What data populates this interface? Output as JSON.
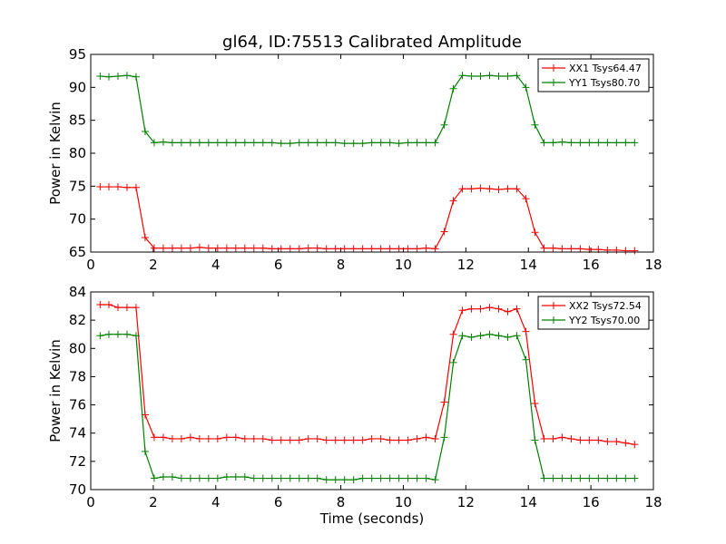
{
  "chart_data": [
    {
      "type": "line",
      "title": "gl64, ID:75513 Calibrated Amplitude",
      "xlabel": "",
      "ylabel": "Power in Kelvin",
      "xlim": [
        0,
        18
      ],
      "ylim": [
        65,
        95
      ],
      "xticks": [
        0,
        2,
        4,
        6,
        8,
        10,
        12,
        14,
        16,
        18
      ],
      "yticks": [
        65,
        70,
        75,
        80,
        85,
        90,
        95
      ],
      "grid": false,
      "legend": "top-right",
      "x": [
        0.3,
        0.58,
        0.87,
        1.16,
        1.45,
        1.74,
        2.03,
        2.32,
        2.61,
        2.9,
        3.19,
        3.48,
        3.77,
        4.06,
        4.35,
        4.64,
        4.93,
        5.22,
        5.51,
        5.8,
        6.09,
        6.38,
        6.67,
        6.96,
        7.25,
        7.54,
        7.83,
        8.12,
        8.41,
        8.7,
        8.99,
        9.28,
        9.57,
        9.86,
        10.15,
        10.44,
        10.73,
        11.02,
        11.31,
        11.6,
        11.89,
        12.18,
        12.47,
        12.76,
        13.05,
        13.34,
        13.63,
        13.92,
        14.21,
        14.5,
        14.79,
        15.08,
        15.37,
        15.66,
        15.95,
        16.24,
        16.53,
        16.82,
        17.11,
        17.4
      ],
      "series": [
        {
          "name": "XX1 Tsys64.47",
          "color": "#ff0000",
          "values": [
            74.9,
            74.9,
            74.9,
            74.8,
            74.8,
            67.2,
            65.6,
            65.6,
            65.6,
            65.6,
            65.6,
            65.7,
            65.6,
            65.6,
            65.6,
            65.6,
            65.6,
            65.6,
            65.6,
            65.5,
            65.5,
            65.5,
            65.5,
            65.6,
            65.6,
            65.5,
            65.5,
            65.5,
            65.5,
            65.5,
            65.5,
            65.5,
            65.5,
            65.5,
            65.5,
            65.5,
            65.6,
            65.5,
            68.1,
            72.8,
            74.6,
            74.6,
            74.7,
            74.6,
            74.5,
            74.6,
            74.6,
            73.1,
            68.0,
            65.6,
            65.6,
            65.5,
            65.5,
            65.5,
            65.4,
            65.4,
            65.3,
            65.3,
            65.2,
            65.2
          ]
        },
        {
          "name": "YY1 Tsys80.70",
          "color": "#008000",
          "values": [
            91.7,
            91.6,
            91.7,
            91.8,
            91.6,
            83.3,
            81.6,
            81.7,
            81.6,
            81.6,
            81.6,
            81.6,
            81.6,
            81.6,
            81.6,
            81.6,
            81.6,
            81.6,
            81.6,
            81.6,
            81.5,
            81.5,
            81.6,
            81.6,
            81.6,
            81.6,
            81.6,
            81.5,
            81.5,
            81.5,
            81.6,
            81.6,
            81.6,
            81.5,
            81.6,
            81.6,
            81.6,
            81.6,
            84.3,
            89.8,
            91.8,
            91.7,
            91.7,
            91.8,
            91.7,
            91.7,
            91.8,
            90.0,
            84.3,
            81.6,
            81.6,
            81.7,
            81.6,
            81.6,
            81.6,
            81.6,
            81.6,
            81.6,
            81.6,
            81.6
          ]
        }
      ]
    },
    {
      "type": "line",
      "title": "",
      "xlabel": "Time (seconds)",
      "ylabel": "Power in Kelvin",
      "xlim": [
        0,
        18
      ],
      "ylim": [
        70,
        84
      ],
      "xticks": [
        0,
        2,
        4,
        6,
        8,
        10,
        12,
        14,
        16,
        18
      ],
      "yticks": [
        70,
        72,
        74,
        76,
        78,
        80,
        82,
        84
      ],
      "grid": false,
      "legend": "top-right",
      "x": [
        0.3,
        0.58,
        0.87,
        1.16,
        1.45,
        1.74,
        2.03,
        2.32,
        2.61,
        2.9,
        3.19,
        3.48,
        3.77,
        4.06,
        4.35,
        4.64,
        4.93,
        5.22,
        5.51,
        5.8,
        6.09,
        6.38,
        6.67,
        6.96,
        7.25,
        7.54,
        7.83,
        8.12,
        8.41,
        8.7,
        8.99,
        9.28,
        9.57,
        9.86,
        10.15,
        10.44,
        10.73,
        11.02,
        11.31,
        11.6,
        11.89,
        12.18,
        12.47,
        12.76,
        13.05,
        13.34,
        13.63,
        13.92,
        14.21,
        14.5,
        14.79,
        15.08,
        15.37,
        15.66,
        15.95,
        16.24,
        16.53,
        16.82,
        17.11,
        17.4
      ],
      "series": [
        {
          "name": "XX2 Tsys72.54",
          "color": "#ff0000",
          "values": [
            83.1,
            83.1,
            82.9,
            82.9,
            82.9,
            75.3,
            73.7,
            73.7,
            73.6,
            73.6,
            73.7,
            73.6,
            73.6,
            73.6,
            73.7,
            73.7,
            73.6,
            73.6,
            73.6,
            73.5,
            73.5,
            73.5,
            73.5,
            73.6,
            73.6,
            73.5,
            73.5,
            73.5,
            73.5,
            73.5,
            73.6,
            73.6,
            73.5,
            73.5,
            73.5,
            73.6,
            73.7,
            73.6,
            76.2,
            81.0,
            82.7,
            82.8,
            82.8,
            82.9,
            82.8,
            82.6,
            82.8,
            81.2,
            76.1,
            73.6,
            73.6,
            73.7,
            73.6,
            73.5,
            73.5,
            73.5,
            73.4,
            73.4,
            73.3,
            73.2
          ]
        },
        {
          "name": "YY2 Tsys70.00",
          "color": "#008000",
          "values": [
            80.9,
            81.0,
            81.0,
            81.0,
            80.9,
            72.7,
            70.8,
            70.9,
            70.9,
            70.8,
            70.8,
            70.8,
            70.8,
            70.8,
            70.9,
            70.9,
            70.9,
            70.8,
            70.8,
            70.8,
            70.8,
            70.8,
            70.8,
            70.8,
            70.8,
            70.7,
            70.7,
            70.7,
            70.7,
            70.8,
            70.8,
            70.8,
            70.8,
            70.8,
            70.8,
            70.8,
            70.8,
            70.7,
            73.7,
            79.0,
            80.9,
            80.8,
            80.9,
            81.0,
            80.9,
            80.8,
            80.9,
            79.2,
            73.5,
            70.8,
            70.8,
            70.8,
            70.8,
            70.8,
            70.8,
            70.8,
            70.8,
            70.8,
            70.8,
            70.8
          ]
        }
      ]
    }
  ]
}
